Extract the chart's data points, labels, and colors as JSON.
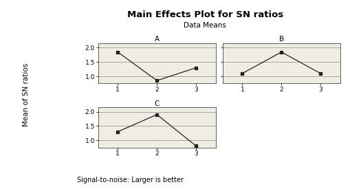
{
  "title": "Main Effects Plot for SN ratios",
  "subtitle": "Data Means",
  "ylabel": "Mean of SN ratios",
  "footnote": "Signal-to-noise: Larger is better",
  "outer_bg_color": "#ffffff",
  "inner_bg_color": "#e8e4d8",
  "panel_bg_color": "#f0ede4",
  "panels": [
    {
      "label": "A",
      "x": [
        1,
        2,
        3
      ],
      "y": [
        1.85,
        0.85,
        1.3
      ]
    },
    {
      "label": "B",
      "x": [
        1,
        2,
        3
      ],
      "y": [
        1.1,
        1.85,
        1.1
      ]
    },
    {
      "label": "C",
      "x": [
        1,
        2,
        3
      ],
      "y": [
        1.3,
        1.9,
        0.8
      ]
    }
  ],
  "ylim": [
    0.75,
    2.15
  ],
  "yticks": [
    1.0,
    1.5,
    2.0
  ],
  "xticks": [
    1,
    2,
    3
  ],
  "line_color": "#222222",
  "marker": "s",
  "marker_size": 3.5,
  "grid_color": "#888888",
  "title_fontsize": 9.5,
  "subtitle_fontsize": 7.5,
  "ylabel_fontsize": 7.5,
  "panel_label_fontsize": 7.5,
  "tick_fontsize": 6.5,
  "footnote_fontsize": 7
}
